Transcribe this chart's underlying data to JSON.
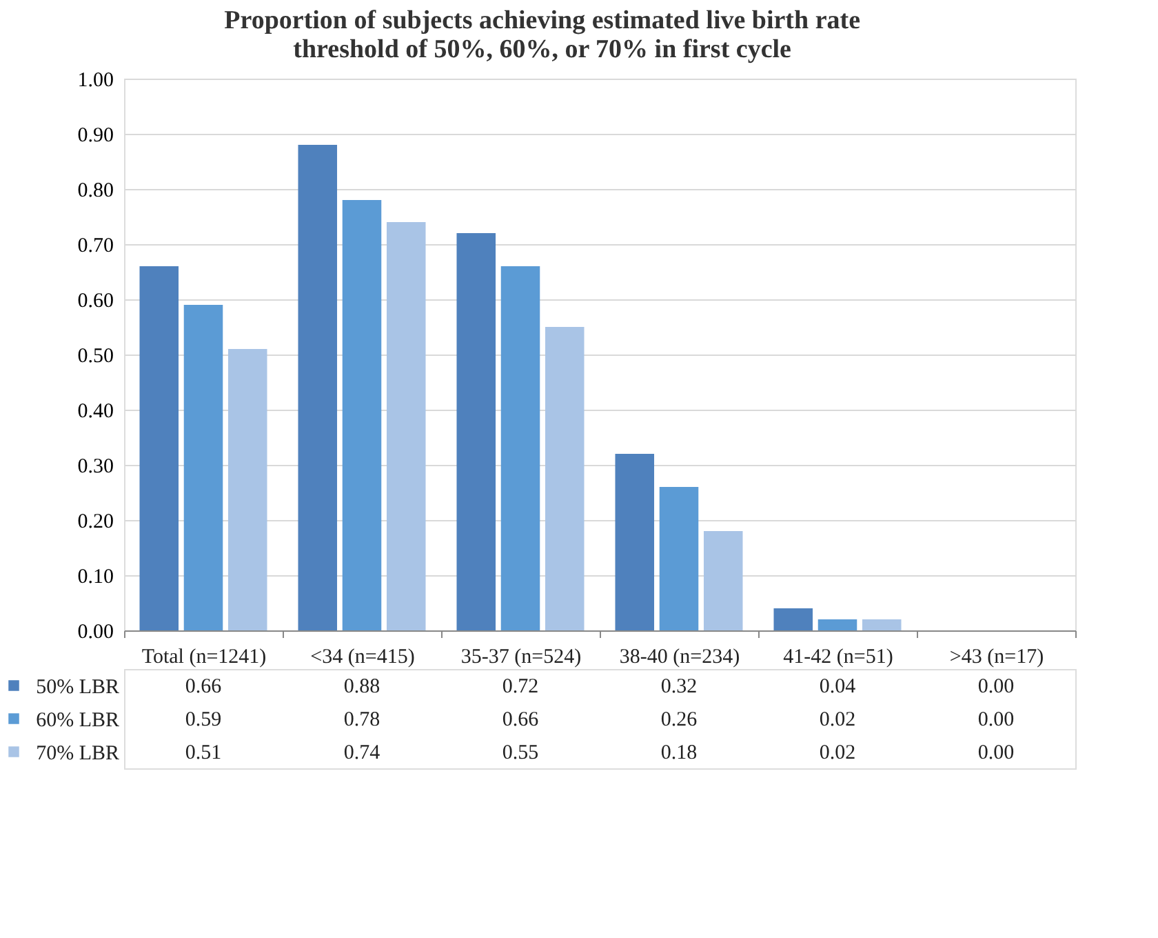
{
  "chart_data": {
    "type": "bar",
    "title": "Proportion of subjects achieving estimated live birth rate threshold of 50%, 60%, or 70% in first cycle",
    "categories": [
      "Total (n=1241)",
      "<34 (n=415)",
      "35-37 (n=524)",
      "38-40 (n=234)",
      "41-42 (n=51)",
      ">43   (n=17)"
    ],
    "series": [
      {
        "name": "50% LBR",
        "color": "#4f81bd",
        "values": [
          0.66,
          0.88,
          0.72,
          0.32,
          0.04,
          0.0
        ],
        "value_labels": [
          "0.66",
          "0.88",
          "0.72",
          "0.32",
          "0.04",
          "0.00"
        ]
      },
      {
        "name": "60% LBR",
        "color": "#5b9bd5",
        "values": [
          0.59,
          0.78,
          0.66,
          0.26,
          0.02,
          0.0
        ],
        "value_labels": [
          "0.59",
          "0.78",
          "0.66",
          "0.26",
          "0.02",
          "0.00"
        ]
      },
      {
        "name": "70% LBR",
        "color": "#a9c4e6",
        "values": [
          0.51,
          0.74,
          0.55,
          0.18,
          0.02,
          0.0
        ],
        "value_labels": [
          "0.51",
          "0.74",
          "0.55",
          "0.18",
          "0.02",
          "0.00"
        ]
      }
    ],
    "ylim": [
      0,
      1
    ],
    "yticks": [
      {
        "value": 0,
        "label": "0.00"
      },
      {
        "value": 0.1,
        "label": "0.10"
      },
      {
        "value": 0.2,
        "label": "0.20"
      },
      {
        "value": 0.3,
        "label": "0.30"
      },
      {
        "value": 0.4,
        "label": "0.40"
      },
      {
        "value": 0.5,
        "label": "0.50"
      },
      {
        "value": 0.6,
        "label": "0.60"
      },
      {
        "value": 0.7,
        "label": "0.70"
      },
      {
        "value": 0.8,
        "label": "0.80"
      },
      {
        "value": 0.9,
        "label": "0.90"
      },
      {
        "value": 1,
        "label": "1.00"
      }
    ],
    "grid": "y",
    "legend": "bottom"
  }
}
